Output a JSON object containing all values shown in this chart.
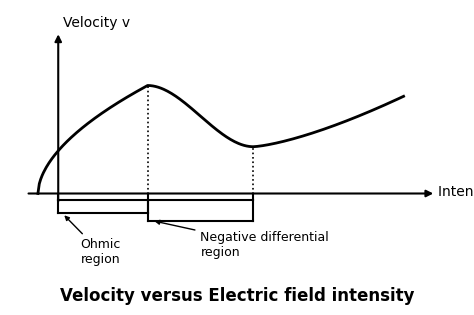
{
  "title": "Velocity versus Electric field intensity",
  "title_fontsize": 12,
  "title_fontweight": "bold",
  "ylabel": "Velocity v",
  "xlabel": "Intensity E",
  "ylabel_fontsize": 10,
  "xlabel_fontsize": 10,
  "curve_color": "#000000",
  "curve_linewidth": 2.0,
  "axis_color": "#000000",
  "background_color": "#ffffff",
  "origin_x": 0.5,
  "peak_x": 3.2,
  "peak_y": 3.0,
  "valley_x": 5.8,
  "valley_y": 1.3,
  "x_max": 9.5,
  "y_max": 4.5,
  "y_axis_x": 1.0,
  "ohmic_label": "Ohmic\nregion",
  "neg_diff_label": "Negative differential\nregion",
  "dashed_color": "#000000",
  "annotation_fontsize": 9,
  "xlim": [
    -0.2,
    11.0
  ],
  "ylim": [
    -3.2,
    5.2
  ]
}
